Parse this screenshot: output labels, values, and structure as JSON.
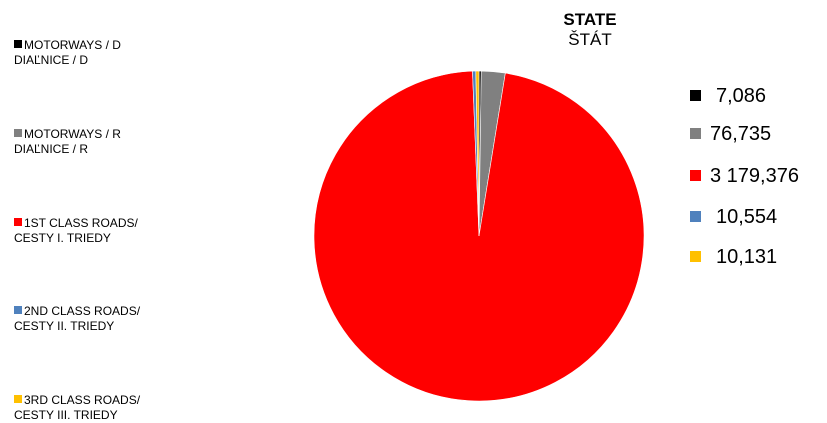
{
  "title": "STATE",
  "subtitle": "ŠTÁT",
  "legend": [
    {
      "line1": "MOTORWAYS / D",
      "line2": "DIAĽNICE / D",
      "color": "#000000"
    },
    {
      "line1": "MOTORWAYS / R",
      "line2": "DIAĽNICE / R",
      "color": "#808080"
    },
    {
      "line1": "1ST CLASS ROADS/",
      "line2": "CESTY I. TRIEDY",
      "color": "#ff0000"
    },
    {
      "line1": "2ND CLASS ROADS/",
      "line2": "CESTY II. TRIEDY",
      "color": "#4f81bd"
    },
    {
      "line1": "3RD CLASS ROADS/",
      "line2": "CESTY III. TRIEDY",
      "color": "#ffc000"
    }
  ],
  "value_labels": [
    "7,086",
    "76,735",
    "3 179,376",
    "10,554",
    "10,131"
  ],
  "chart_data": {
    "type": "pie",
    "title": "STATE",
    "subtitle": "ŠTÁT",
    "categories": [
      "MOTORWAYS / D DIAĽNICE / D",
      "MOTORWAYS / R DIAĽNICE / R",
      "1ST CLASS ROADS/ CESTY I. TRIEDY",
      "2ND CLASS ROADS/ CESTY II. TRIEDY",
      "3RD CLASS ROADS/ CESTY III. TRIEDY"
    ],
    "values": [
      7.086,
      76.735,
      3179.376,
      10.554,
      10.131
    ],
    "colors": [
      "#000000",
      "#808080",
      "#ff0000",
      "#4f81bd",
      "#ffc000"
    ],
    "legend_position": "left"
  }
}
